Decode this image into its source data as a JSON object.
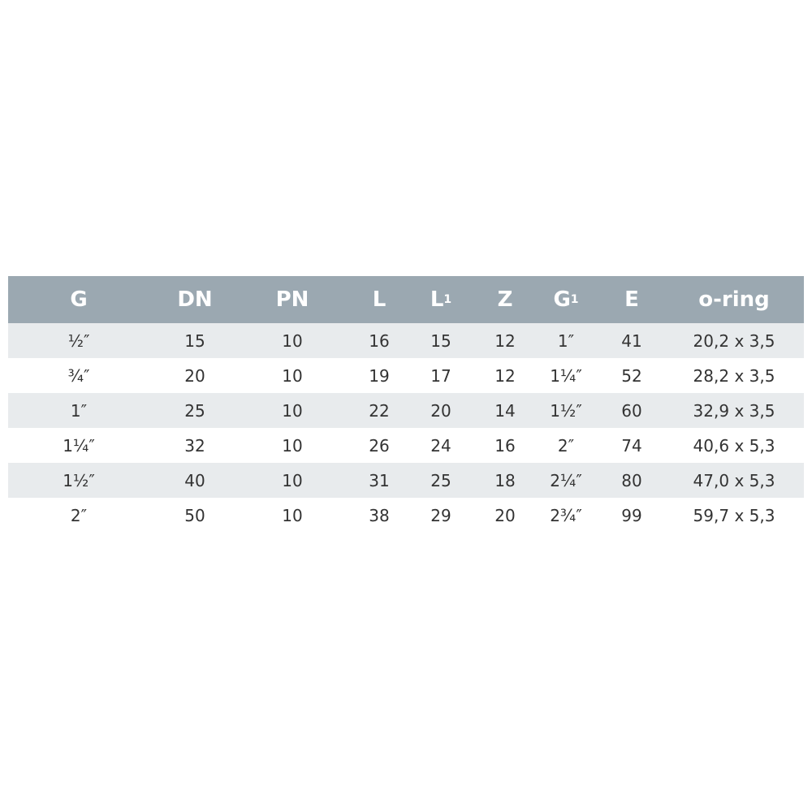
{
  "table": {
    "headers": [
      {
        "main": "G",
        "sub": ""
      },
      {
        "main": "DN",
        "sub": ""
      },
      {
        "main": "PN",
        "sub": ""
      },
      {
        "main": "L",
        "sub": ""
      },
      {
        "main": "L",
        "sub": "1"
      },
      {
        "main": "Z",
        "sub": ""
      },
      {
        "main": "G",
        "sub": "1"
      },
      {
        "main": "E",
        "sub": ""
      },
      {
        "main": "o-ring",
        "sub": ""
      }
    ],
    "rows": [
      [
        "½″",
        "15",
        "10",
        "16",
        "15",
        "12",
        "1″",
        "41",
        "20,2 x 3,5"
      ],
      [
        "¾″",
        "20",
        "10",
        "19",
        "17",
        "12",
        "1¼″",
        "52",
        "28,2 x 3,5"
      ],
      [
        "1″",
        "25",
        "10",
        "22",
        "20",
        "14",
        "1½″",
        "60",
        "32,9 x 3,5"
      ],
      [
        "1¼″",
        "32",
        "10",
        "26",
        "24",
        "16",
        "2″",
        "74",
        "40,6 x 5,3"
      ],
      [
        "1½″",
        "40",
        "10",
        "31",
        "25",
        "18",
        "2¼″",
        "80",
        "47,0 x 5,3"
      ],
      [
        "2″",
        "50",
        "10",
        "38",
        "29",
        "20",
        "2¾″",
        "99",
        "59,7 x 5,3"
      ]
    ],
    "colors": {
      "header": "#9ba8b1",
      "stripe": "#e8ebed"
    }
  }
}
